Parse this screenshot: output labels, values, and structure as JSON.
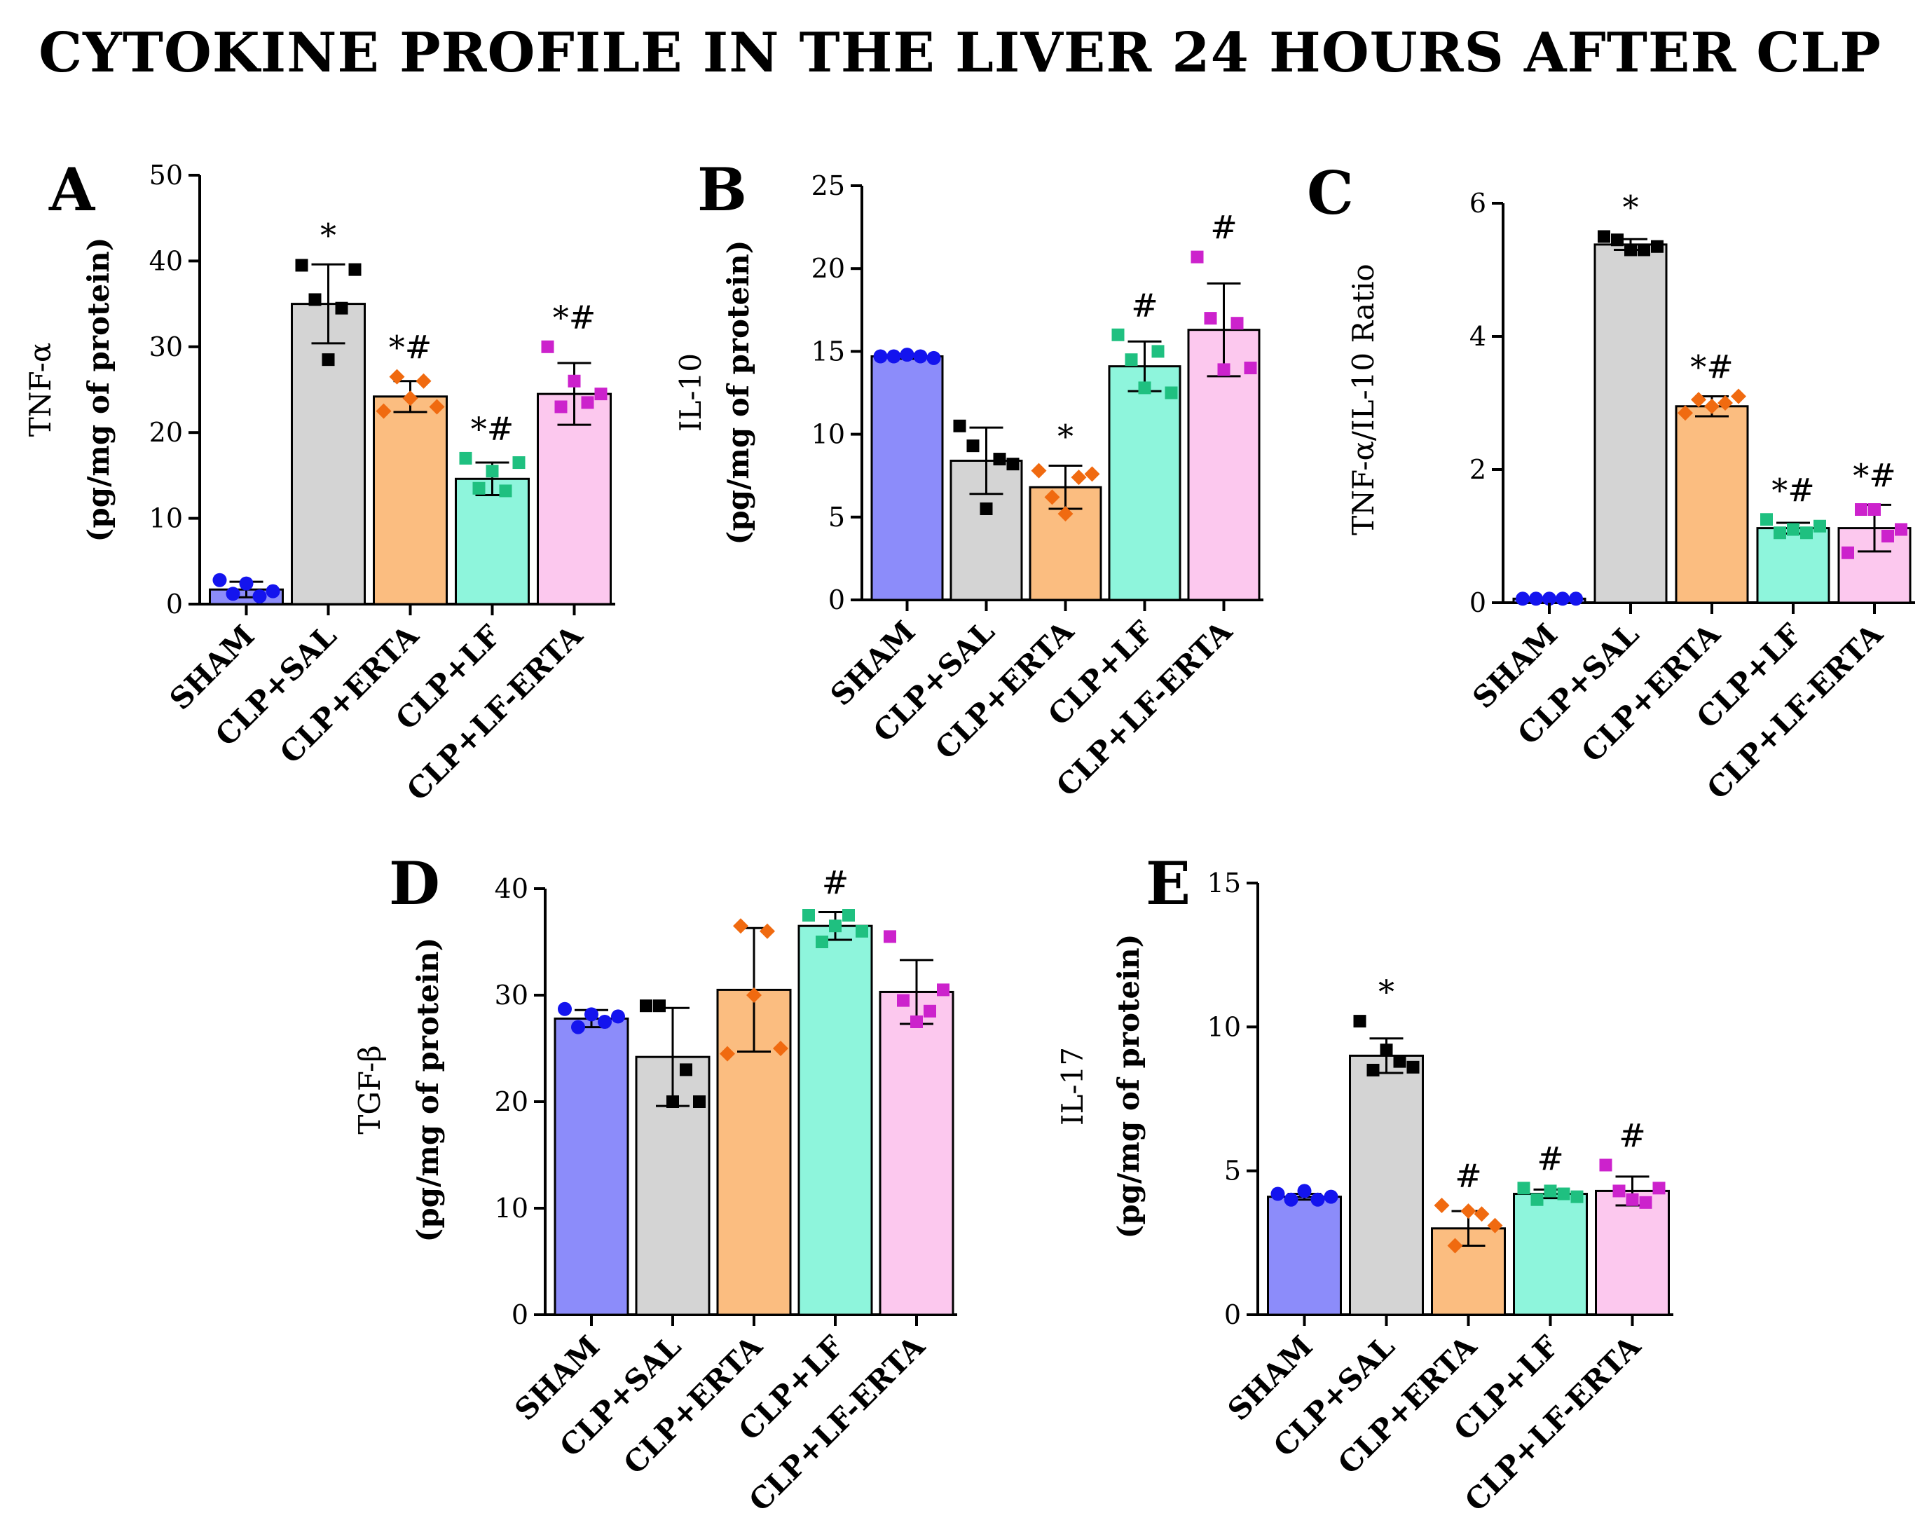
{
  "title": "CYTOKINE PROFILE IN THE LIVER 24 HOURS AFTER CLP",
  "group_colors": {
    "SHAM": {
      "fill": "#8c8cfa",
      "marker": "#1414ee"
    },
    "CLP+SAL": {
      "fill": "#d4d4d4",
      "marker": "#000000"
    },
    "CLP+ERTA": {
      "fill": "#fbbd80",
      "marker": "#f06a10"
    },
    "CLP+LF": {
      "fill": "#8ef5dc",
      "marker": "#1fc080"
    },
    "CLP+LF-ERTA": {
      "fill": "#fcc8ee",
      "marker": "#cc22cc"
    }
  },
  "chart_data": [
    {
      "panel": "A",
      "type": "bar",
      "ylabel_line1": "TNF-α",
      "ylabel_line2": "(pg/mg of protein)",
      "categories": [
        "SHAM",
        "CLP+SAL",
        "CLP+ERTA",
        "CLP+LF",
        "CLP+LF-ERTA"
      ],
      "ylim": [
        0,
        50
      ],
      "yticks": [
        0,
        10,
        20,
        30,
        40,
        50
      ],
      "means": [
        1.7,
        35.0,
        24.2,
        14.6,
        24.5
      ],
      "sd": [
        0.9,
        4.6,
        1.8,
        1.9,
        3.6
      ],
      "points": [
        [
          2.8,
          1.2,
          2.4,
          0.9,
          1.5
        ],
        [
          39.5,
          35.5,
          28.5,
          34.5,
          39.0
        ],
        [
          22.5,
          26.5,
          24.0,
          26.0,
          23.0
        ],
        [
          17.0,
          13.5,
          15.5,
          13.2,
          16.5
        ],
        [
          30.0,
          23.0,
          26.0,
          23.5,
          24.5
        ]
      ],
      "markers": [
        "circle",
        "square",
        "diamond",
        "square",
        "square"
      ],
      "sig": [
        "",
        "*",
        "*#",
        "*#",
        "*#"
      ]
    },
    {
      "panel": "B",
      "type": "bar",
      "ylabel_line1": "IL-10",
      "ylabel_line2": "(pg/mg of protein)",
      "categories": [
        "SHAM",
        "CLP+SAL",
        "CLP+ERTA",
        "CLP+LF",
        "CLP+LF-ERTA"
      ],
      "ylim": [
        0,
        25
      ],
      "yticks": [
        0,
        5,
        10,
        15,
        20,
        25
      ],
      "means": [
        14.7,
        8.4,
        6.8,
        14.1,
        16.3
      ],
      "sd": [
        0.15,
        2.0,
        1.3,
        1.5,
        2.8
      ],
      "points": [
        [
          14.7,
          14.7,
          14.8,
          14.7,
          14.6
        ],
        [
          10.5,
          9.3,
          5.5,
          8.5,
          8.2
        ],
        [
          7.8,
          6.2,
          5.2,
          7.4,
          7.6
        ],
        [
          16.0,
          14.5,
          12.8,
          15.0,
          12.5
        ],
        [
          20.7,
          17.0,
          13.9,
          16.7,
          14.0
        ]
      ],
      "markers": [
        "circle",
        "square",
        "diamond",
        "square",
        "square"
      ],
      "sig": [
        "",
        "",
        "*",
        "#",
        "#"
      ]
    },
    {
      "panel": "C",
      "type": "bar",
      "ylabel_line1": "TNF-α/IL-10 Ratio",
      "ylabel_line2": "",
      "categories": [
        "SHAM",
        "CLP+SAL",
        "CLP+ERTA",
        "CLP+LF",
        "CLP+LF-ERTA"
      ],
      "ylim": [
        0,
        6
      ],
      "yticks": [
        0,
        2,
        4,
        6
      ],
      "means": [
        0.06,
        5.38,
        2.95,
        1.12,
        1.12
      ],
      "sd": [
        0.01,
        0.08,
        0.15,
        0.08,
        0.35
      ],
      "points": [
        [
          0.06,
          0.06,
          0.06,
          0.06,
          0.06
        ],
        [
          5.5,
          5.45,
          5.3,
          5.3,
          5.35
        ],
        [
          2.85,
          3.05,
          2.95,
          3.0,
          3.1
        ],
        [
          1.25,
          1.05,
          1.1,
          1.05,
          1.15
        ],
        [
          0.75,
          1.4,
          1.4,
          1.0,
          1.1
        ]
      ],
      "markers": [
        "circle",
        "square",
        "diamond",
        "square",
        "square"
      ],
      "sig": [
        "",
        "*",
        "*#",
        "*#",
        "*#"
      ]
    },
    {
      "panel": "D",
      "type": "bar",
      "ylabel_line1": "TGF-β",
      "ylabel_line2": "(pg/mg of protein)",
      "categories": [
        "SHAM",
        "CLP+SAL",
        "CLP+ERTA",
        "CLP+LF",
        "CLP+LF-ERTA"
      ],
      "ylim": [
        0,
        40
      ],
      "yticks": [
        0,
        10,
        20,
        30,
        40
      ],
      "means": [
        27.8,
        24.2,
        30.5,
        36.5,
        30.3
      ],
      "sd": [
        0.8,
        4.6,
        5.8,
        1.3,
        3.0
      ],
      "points": [
        [
          28.7,
          27.0,
          28.2,
          27.5,
          28.0
        ],
        [
          29.0,
          29.0,
          20.0,
          23.0,
          20.0
        ],
        [
          24.5,
          36.5,
          30.0,
          36.0,
          25.0
        ],
        [
          37.5,
          35.0,
          36.5,
          37.5,
          36.0
        ],
        [
          35.5,
          29.5,
          27.5,
          28.5,
          30.5
        ]
      ],
      "markers": [
        "circle",
        "square",
        "diamond",
        "square",
        "square"
      ],
      "sig": [
        "",
        "",
        "",
        "#",
        ""
      ]
    },
    {
      "panel": "E",
      "type": "bar",
      "ylabel_line1": "IL-17",
      "ylabel_line2": "(pg/mg of protein)",
      "categories": [
        "SHAM",
        "CLP+SAL",
        "CLP+ERTA",
        "CLP+LF",
        "CLP+LF-ERTA"
      ],
      "ylim": [
        0,
        15
      ],
      "yticks": [
        0,
        5,
        10,
        15
      ],
      "means": [
        4.1,
        9.0,
        3.0,
        4.2,
        4.3
      ],
      "sd": [
        0.1,
        0.6,
        0.6,
        0.15,
        0.5
      ],
      "points": [
        [
          4.2,
          4.0,
          4.3,
          4.0,
          4.1
        ],
        [
          10.2,
          8.5,
          9.2,
          8.8,
          8.6
        ],
        [
          3.8,
          2.4,
          3.6,
          3.5,
          3.1
        ],
        [
          4.4,
          4.0,
          4.3,
          4.2,
          4.1
        ],
        [
          5.2,
          4.3,
          4.0,
          3.9,
          4.4
        ]
      ],
      "markers": [
        "circle",
        "square",
        "diamond",
        "square",
        "square"
      ],
      "sig": [
        "",
        "*",
        "#",
        "#",
        "#"
      ]
    }
  ]
}
